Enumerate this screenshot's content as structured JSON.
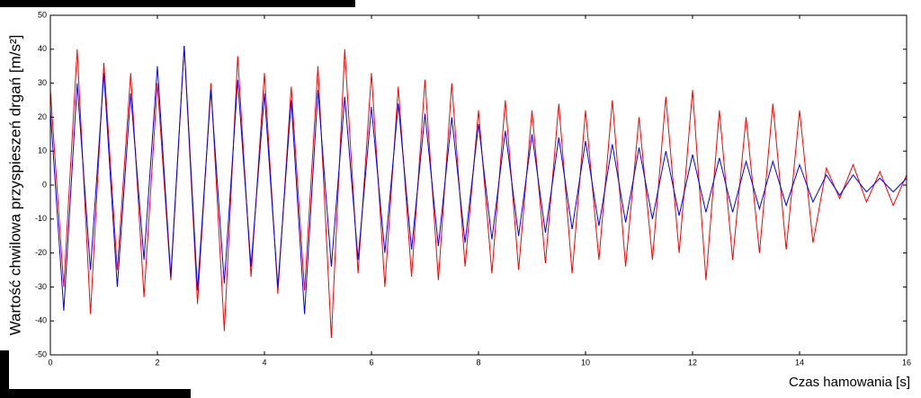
{
  "chart_data": {
    "type": "line",
    "y_label": "Wartość chwilowa przyspieszeń drgań [m/s²]",
    "x_label": "Czas hamowania [s]",
    "x": [
      0,
      0.25,
      0.5,
      0.75,
      1,
      1.25,
      1.5,
      1.75,
      2,
      2.25,
      2.5,
      2.75,
      3,
      3.25,
      3.5,
      3.75,
      4,
      4.25,
      4.5,
      4.75,
      5,
      5.25,
      5.5,
      5.75,
      6,
      6.25,
      6.5,
      6.75,
      7,
      7.25,
      7.5,
      7.75,
      8,
      8.25,
      8.5,
      8.75,
      9,
      9.25,
      9.5,
      9.75,
      10,
      10.25,
      10.5,
      10.75,
      11,
      11.25,
      11.5,
      11.75,
      12,
      12.25,
      12.5,
      12.75,
      13,
      13.25,
      13.5,
      13.75,
      14,
      14.25,
      14.5,
      14.75,
      15,
      15.25,
      15.5,
      15.75,
      16
    ],
    "series": [
      {
        "name": "red",
        "color": "#ff0000",
        "values": [
          28,
          -30,
          40,
          -38,
          36,
          -25,
          33,
          -33,
          30,
          -28,
          41,
          -35,
          30,
          -43,
          38,
          -27,
          33,
          -32,
          29,
          -31,
          35,
          -45,
          40,
          -26,
          33,
          -30,
          29,
          -27,
          31,
          -28,
          30,
          -24,
          22,
          -26,
          25,
          -25,
          22,
          -23,
          24,
          -26,
          22,
          -22,
          25,
          -24,
          20,
          -22,
          26,
          -20,
          28,
          -28,
          22,
          -22,
          20,
          -20,
          24,
          -19,
          22,
          -17,
          5,
          -4,
          6,
          -5,
          4,
          -6,
          3
        ]
      },
      {
        "name": "blue",
        "color": "#0000ff",
        "values": [
          22,
          -37,
          30,
          -25,
          33,
          -30,
          27,
          -22,
          35,
          -27,
          41,
          -31,
          28,
          -29,
          31,
          -24,
          27,
          -30,
          25,
          -38,
          28,
          -24,
          26,
          -22,
          23,
          -20,
          24,
          -19,
          21,
          -18,
          20,
          -17,
          18,
          -16,
          16,
          -15,
          15,
          -14,
          14,
          -13,
          13,
          -12,
          12,
          -11,
          11,
          -10,
          10,
          -9,
          9,
          -8,
          8,
          -8,
          7,
          -7,
          7,
          -6,
          6,
          -5,
          3,
          -3,
          3,
          -2,
          2,
          -2,
          2
        ]
      }
    ],
    "xlim": [
      0,
      16
    ],
    "xticks": [
      0,
      2,
      4,
      6,
      8,
      10,
      12,
      14,
      16
    ],
    "ylim": [
      -50,
      50
    ],
    "yticks": [
      -50,
      -40,
      -30,
      -20,
      -10,
      0,
      10,
      20,
      30,
      40,
      50
    ]
  }
}
